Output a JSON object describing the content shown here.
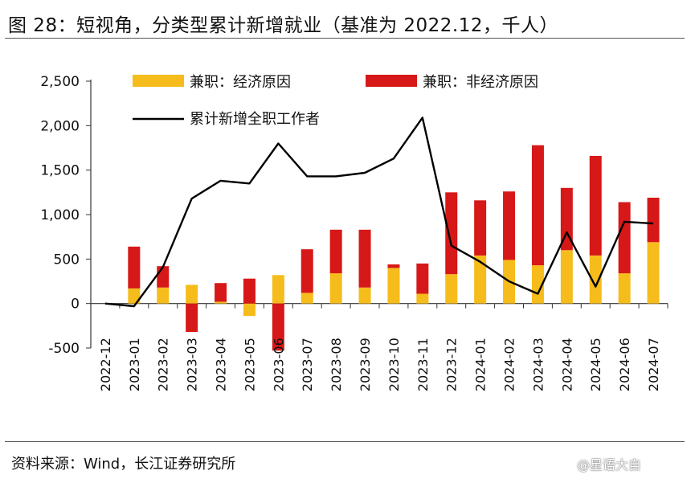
{
  "title": "图 28：短视角，分类型累计新增就业（基准为 2022.12，千人）",
  "source": "资料来源：Wind，长江证券研究所",
  "watermark": "@星语大自",
  "colors": {
    "econ": "#F5BC1B",
    "nonecon": "#D71818",
    "line": "#000000"
  },
  "chart_data": {
    "type": "bar",
    "stacked": true,
    "categories": [
      "2022-12",
      "2023-01",
      "2023-02",
      "2023-03",
      "2023-04",
      "2023-05",
      "2023-06",
      "2023-07",
      "2023-08",
      "2023-09",
      "2023-10",
      "2023-11",
      "2023-12",
      "2024-01",
      "2024-02",
      "2024-03",
      "2024-04",
      "2024-05",
      "2024-06",
      "2024-07"
    ],
    "series": [
      {
        "name": "兼职：经济原因",
        "type": "bar",
        "values": [
          0,
          170,
          180,
          210,
          20,
          -140,
          320,
          120,
          340,
          180,
          400,
          110,
          330,
          540,
          490,
          430,
          600,
          540,
          340,
          690
        ]
      },
      {
        "name": "兼职：非经济原因",
        "type": "bar",
        "values": [
          0,
          470,
          240,
          -320,
          210,
          280,
          -530,
          490,
          490,
          650,
          40,
          340,
          920,
          620,
          770,
          1350,
          700,
          1120,
          800,
          500
        ]
      },
      {
        "name": "累计新增全职工作者",
        "type": "line",
        "values": [
          0,
          -30,
          410,
          1180,
          1380,
          1350,
          1800,
          1430,
          1430,
          1470,
          1630,
          2090,
          650,
          470,
          250,
          110,
          800,
          190,
          920,
          900
        ]
      }
    ],
    "yticks": [
      "2,500",
      "2,000",
      "1,500",
      "1,000",
      "500",
      "0",
      "-500"
    ],
    "ylim": [
      -500,
      2500
    ],
    "grid": false,
    "legend": "top"
  }
}
